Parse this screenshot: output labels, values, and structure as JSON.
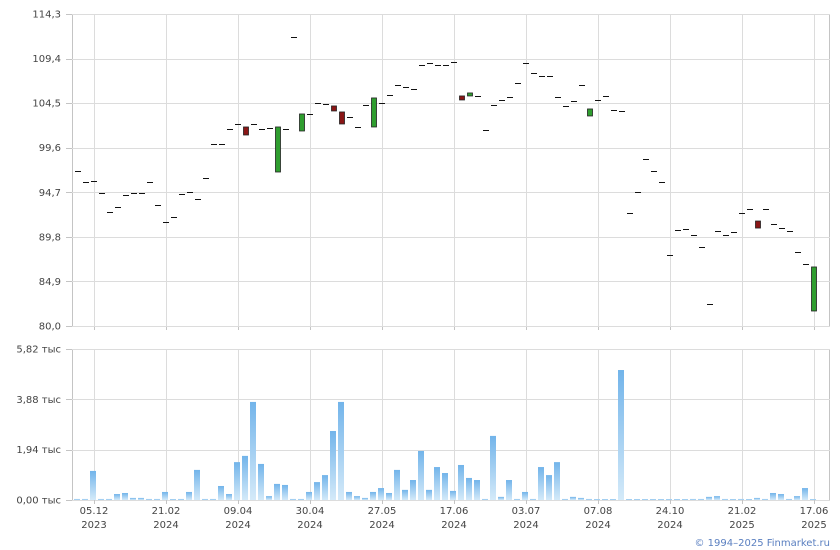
{
  "source_credit": "© 1994–2025 Finmarket.ru",
  "colors": {
    "candle_up": "#2f9e2f",
    "candle_down": "#8a1616",
    "candle_outline": "#222222",
    "doji": "#111111",
    "volume_top": "#72b4ea",
    "volume_bottom": "#d4eaf9",
    "grid": "#dcdcdc",
    "frame": "#c4c4c4",
    "axis_text": "#444444",
    "credit_text": "#5a7fc0"
  },
  "chart_data": [
    {
      "type": "bar",
      "bar_style": "candlestick",
      "grid": true,
      "ylim": [
        80.0,
        114.3
      ],
      "yticks": [
        {
          "value": 114.3,
          "label": "114,3"
        },
        {
          "value": 109.4,
          "label": "109,4"
        },
        {
          "value": 104.5,
          "label": "104,5"
        },
        {
          "value": 99.6,
          "label": "99,6"
        },
        {
          "value": 94.7,
          "label": "94,7"
        },
        {
          "value": 89.8,
          "label": "89,8"
        },
        {
          "value": 84.9,
          "label": "84,9"
        },
        {
          "value": 80.0,
          "label": "80,0"
        }
      ],
      "xticks": [
        {
          "at": 2,
          "date": "05.12",
          "year": "2023"
        },
        {
          "at": 11,
          "date": "21.02",
          "year": "2024"
        },
        {
          "at": 20,
          "date": "09.04",
          "year": "2024"
        },
        {
          "at": 29,
          "date": "30.04",
          "year": "2024"
        },
        {
          "at": 38,
          "date": "27.05",
          "year": "2024"
        },
        {
          "at": 47,
          "date": "17.06",
          "year": "2024"
        },
        {
          "at": 56,
          "date": "03.07",
          "year": "2024"
        },
        {
          "at": 65,
          "date": "07.08",
          "year": "2024"
        },
        {
          "at": 74,
          "date": "24.10",
          "year": "2024"
        },
        {
          "at": 83,
          "date": "21.02",
          "year": "2025"
        },
        {
          "at": 92,
          "date": "17.06",
          "year": "2025"
        }
      ],
      "open": [
        97.04,
        95.83,
        95.94,
        94.62,
        92.53,
        93.08,
        94.4,
        94.62,
        94.62,
        95.83,
        93.3,
        91.43,
        91.98,
        94.51,
        94.73,
        93.96,
        96.27,
        100.01,
        100.01,
        101.66,
        102.21,
        101.88,
        102.21,
        101.66,
        101.77,
        96.93,
        101.66,
        111.77,
        101.44,
        103.31,
        104.52,
        104.41,
        104.19,
        103.53,
        102.98,
        101.88,
        104.3,
        101.88,
        104.52,
        105.4,
        106.49,
        106.28,
        106.06,
        108.69,
        108.91,
        108.69,
        108.69,
        109.02,
        105.29,
        105.29,
        105.29,
        101.55,
        104.3,
        104.85,
        105.18,
        106.71,
        108.91,
        107.81,
        107.48,
        107.48,
        105.18,
        104.19,
        104.74,
        106.49,
        103.09,
        104.85,
        105.29,
        103.75,
        103.64,
        92.42,
        94.73,
        98.36,
        97.04,
        95.83,
        87.81,
        90.55,
        90.66,
        90.0,
        88.69,
        82.42,
        90.44,
        90.0,
        90.33,
        92.42,
        92.86,
        91.54,
        92.86,
        91.21,
        90.77,
        90.44,
        88.14,
        86.82,
        81.65
      ],
      "close": [
        97.04,
        95.83,
        95.94,
        94.62,
        92.53,
        93.08,
        94.4,
        94.62,
        94.62,
        95.83,
        93.3,
        91.43,
        91.98,
        94.51,
        94.73,
        93.96,
        96.27,
        100.01,
        100.01,
        101.66,
        102.21,
        101.0,
        102.21,
        101.66,
        101.77,
        101.88,
        101.66,
        111.77,
        103.31,
        103.31,
        104.52,
        104.41,
        103.64,
        102.21,
        102.98,
        101.88,
        104.3,
        105.07,
        104.52,
        105.4,
        106.49,
        106.28,
        106.06,
        108.69,
        108.91,
        108.69,
        108.69,
        109.02,
        104.85,
        105.62,
        105.29,
        101.55,
        104.3,
        104.85,
        105.18,
        106.71,
        108.91,
        107.81,
        107.48,
        107.48,
        105.18,
        104.19,
        104.74,
        106.49,
        103.86,
        104.85,
        105.29,
        103.75,
        103.64,
        92.42,
        94.73,
        98.36,
        97.04,
        95.83,
        87.81,
        90.55,
        90.66,
        90.0,
        88.69,
        82.42,
        90.44,
        90.0,
        90.33,
        92.42,
        92.86,
        90.77,
        92.86,
        91.21,
        90.77,
        90.44,
        88.14,
        86.82,
        86.49
      ]
    },
    {
      "type": "bar",
      "grid": true,
      "ylim": [
        0,
        5.82
      ],
      "yticks": [
        {
          "value": 5.82,
          "label": "5,82 тыс"
        },
        {
          "value": 3.88,
          "label": "3,88 тыс"
        },
        {
          "value": 1.94,
          "label": "1,94 тыс"
        },
        {
          "value": 0.0,
          "label": "0,00 тыс"
        }
      ],
      "values": [
        0.04,
        0.04,
        1.12,
        0.04,
        0.04,
        0.23,
        0.27,
        0.08,
        0.08,
        0.04,
        0.04,
        0.31,
        0.02,
        0.04,
        0.31,
        1.16,
        0.04,
        0.04,
        0.54,
        0.23,
        1.46,
        1.7,
        3.78,
        1.39,
        0.15,
        0.62,
        0.58,
        0.04,
        0.04,
        0.31,
        0.69,
        0.96,
        2.66,
        3.78,
        0.31,
        0.15,
        0.08,
        0.31,
        0.46,
        0.27,
        1.16,
        0.39,
        0.77,
        1.89,
        0.39,
        1.27,
        1.04,
        0.35,
        1.35,
        0.85,
        0.77,
        0.04,
        2.47,
        0.12,
        0.77,
        0.04,
        0.31,
        0.04,
        1.27,
        0.96,
        1.46,
        0.04,
        0.12,
        0.08,
        0.04,
        0.02,
        0.02,
        0.02,
        5.01,
        0.02,
        0.02,
        0.02,
        0.02,
        0.02,
        0.02,
        0.02,
        0.02,
        0.04,
        0.04,
        0.12,
        0.15,
        0.04,
        0.02,
        0.04,
        0.02,
        0.08,
        0.04,
        0.27,
        0.23,
        0.04,
        0.15,
        0.46,
        0.02
      ]
    }
  ]
}
